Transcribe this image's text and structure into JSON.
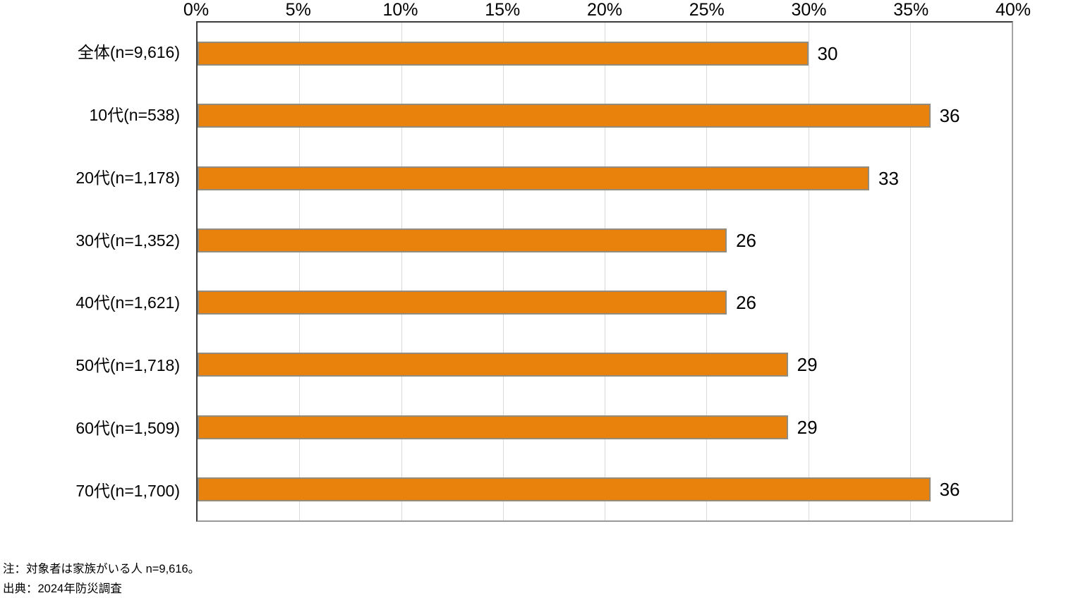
{
  "chart_data": {
    "type": "bar",
    "orientation": "horizontal",
    "categories": [
      "全体(n=9,616)",
      "10代(n=538)",
      "20代(n=1,178)",
      "30代(n=1,352)",
      "40代(n=1,621)",
      "50代(n=1,718)",
      "60代(n=1,509)",
      "70代(n=1,700)"
    ],
    "values": [
      30,
      36,
      33,
      26,
      26,
      29,
      29,
      36
    ],
    "value_labels": [
      "30",
      "36",
      "33",
      "26",
      "26",
      "29",
      "29",
      "36"
    ],
    "xlim": [
      0,
      40
    ],
    "x_tick_step": 5,
    "x_ticks": [
      "0%",
      "5%",
      "10%",
      "15%",
      "20%",
      "25%",
      "30%",
      "35%",
      "40%"
    ],
    "title": "",
    "xlabel": "",
    "ylabel": "",
    "grid": true,
    "legend": false,
    "bar_color": "#e8820d",
    "bar_border_color": "#928c7e",
    "gridline_color": "#d9d9d9"
  },
  "notes": {
    "line1": "注：対象者は家族がいる人 n=9,616。",
    "line2": "出典：2024年防災調査"
  }
}
